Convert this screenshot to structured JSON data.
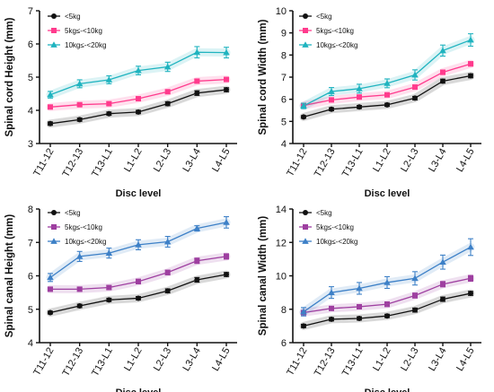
{
  "chart_data": [
    {
      "type": "line",
      "xlabel": "Disc level",
      "ylabel": "Spinal cord Height (mm)",
      "categories": [
        "T11-12",
        "T12-13",
        "T13-L1",
        "L1-L2",
        "L2-L3",
        "L3-L4",
        "L4-L5"
      ],
      "ylim": [
        3,
        7
      ],
      "yticks": [
        3,
        4,
        5,
        6,
        7
      ],
      "legend_position": "top-left",
      "series": [
        {
          "name": "<5kg",
          "color": "#111111",
          "marker": "circle",
          "values": [
            3.6,
            3.72,
            3.9,
            3.95,
            4.2,
            4.52,
            4.62
          ],
          "errors": [
            0.05,
            0.05,
            0.05,
            0.05,
            0.06,
            0.07,
            0.06
          ]
        },
        {
          "name": "5kg≤-<10kg",
          "color": "#ff3b8d",
          "marker": "square",
          "values": [
            4.1,
            4.17,
            4.2,
            4.35,
            4.56,
            4.88,
            4.93
          ],
          "errors": [
            0.04,
            0.04,
            0.05,
            0.05,
            0.05,
            0.06,
            0.06
          ]
        },
        {
          "name": "10kg≤-<20kg",
          "color": "#1fb3bf",
          "marker": "triangle",
          "values": [
            4.47,
            4.8,
            4.92,
            5.2,
            5.31,
            5.75,
            5.74
          ],
          "errors": [
            0.1,
            0.12,
            0.12,
            0.13,
            0.14,
            0.17,
            0.16
          ]
        }
      ]
    },
    {
      "type": "line",
      "xlabel": "Disc level",
      "ylabel": "Spinal cord Width (mm)",
      "categories": [
        "T11-12",
        "T12-13",
        "T13-L1",
        "L1-L2",
        "L2-L3",
        "L3-L4",
        "L4-L5"
      ],
      "ylim": [
        4,
        10
      ],
      "yticks": [
        4,
        5,
        6,
        7,
        8,
        9,
        10
      ],
      "legend_position": "top-left",
      "series": [
        {
          "name": "<5kg",
          "color": "#111111",
          "marker": "circle",
          "values": [
            5.2,
            5.55,
            5.65,
            5.75,
            6.05,
            6.82,
            7.06
          ],
          "errors": [
            0.06,
            0.07,
            0.07,
            0.07,
            0.08,
            0.09,
            0.09
          ]
        },
        {
          "name": "5kg≤-<10kg",
          "color": "#ff3b8d",
          "marker": "square",
          "values": [
            5.72,
            5.97,
            6.1,
            6.2,
            6.55,
            7.22,
            7.6
          ],
          "errors": [
            0.06,
            0.07,
            0.07,
            0.08,
            0.09,
            0.1,
            0.1
          ]
        },
        {
          "name": "10kg≤-<20kg",
          "color": "#1fb3bf",
          "marker": "triangle",
          "values": [
            5.7,
            6.35,
            6.48,
            6.72,
            7.1,
            8.2,
            8.68
          ],
          "errors": [
            0.12,
            0.18,
            0.2,
            0.2,
            0.23,
            0.25,
            0.28
          ]
        }
      ]
    },
    {
      "type": "line",
      "xlabel": "Disc level",
      "ylabel": "Spinal canal Height (mm)",
      "categories": [
        "T11-12",
        "T12-13",
        "T13-L1",
        "L1-L2",
        "L2-L3",
        "L3-L4",
        "L4-L5"
      ],
      "ylim": [
        4,
        8
      ],
      "yticks": [
        4,
        5,
        6,
        7,
        8
      ],
      "legend_position": "top-left",
      "series": [
        {
          "name": "<5kg",
          "color": "#111111",
          "marker": "circle",
          "values": [
            4.9,
            5.1,
            5.28,
            5.33,
            5.55,
            5.88,
            6.04
          ],
          "errors": [
            0.04,
            0.05,
            0.05,
            0.05,
            0.06,
            0.07,
            0.06
          ]
        },
        {
          "name": "5kg≤-<10kg",
          "color": "#9e3fa0",
          "marker": "square",
          "values": [
            5.6,
            5.6,
            5.65,
            5.83,
            6.1,
            6.45,
            6.58
          ],
          "errors": [
            0.06,
            0.06,
            0.06,
            0.07,
            0.07,
            0.08,
            0.08
          ]
        },
        {
          "name": "10kg≤-<20kg",
          "color": "#3d80c7",
          "marker": "triangle",
          "values": [
            5.95,
            6.58,
            6.68,
            6.93,
            7.02,
            7.42,
            7.6
          ],
          "errors": [
            0.12,
            0.15,
            0.15,
            0.15,
            0.16,
            0.08,
            0.17
          ]
        }
      ]
    },
    {
      "type": "line",
      "xlabel": "Disc level",
      "ylabel": "Spinal canal Width (mm)",
      "categories": [
        "T11-12",
        "T12-13",
        "T13-L1",
        "L1-L2",
        "L2-L3",
        "L3-L4",
        "L4-L5"
      ],
      "ylim": [
        6,
        14
      ],
      "yticks": [
        6,
        8,
        10,
        12,
        14
      ],
      "legend_position": "top-left",
      "series": [
        {
          "name": "<5kg",
          "color": "#111111",
          "marker": "circle",
          "values": [
            7.0,
            7.4,
            7.45,
            7.6,
            7.95,
            8.6,
            8.95
          ],
          "errors": [
            0.1,
            0.1,
            0.1,
            0.1,
            0.12,
            0.13,
            0.12
          ]
        },
        {
          "name": "5kg≤-<10kg",
          "color": "#9e3fa0",
          "marker": "square",
          "values": [
            7.8,
            8.05,
            8.15,
            8.3,
            8.82,
            9.5,
            9.85
          ],
          "errors": [
            0.12,
            0.12,
            0.13,
            0.14,
            0.15,
            0.16,
            0.17
          ]
        },
        {
          "name": "10kg≤-<20kg",
          "color": "#3d80c7",
          "marker": "triangle",
          "values": [
            7.85,
            9.0,
            9.25,
            9.6,
            9.85,
            10.82,
            11.72
          ],
          "errors": [
            0.25,
            0.35,
            0.35,
            0.35,
            0.4,
            0.42,
            0.5
          ]
        }
      ]
    }
  ]
}
